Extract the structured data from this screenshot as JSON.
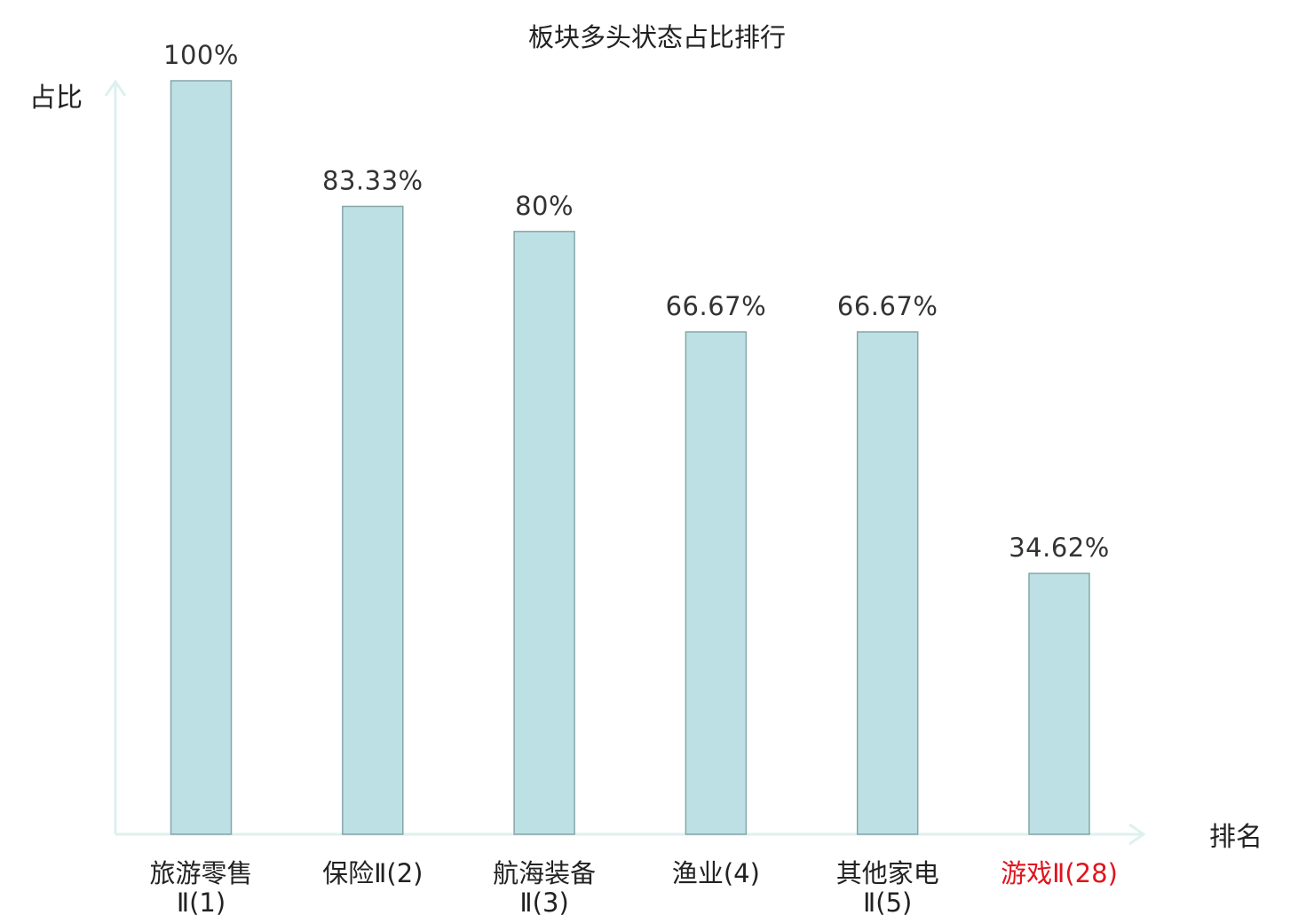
{
  "chart_data": {
    "type": "bar",
    "title": "板块多头状态占比排行",
    "ylabel": "占比",
    "xlabel": "排名",
    "ylim": [
      0,
      100
    ],
    "categories": [
      [
        "旅游零售",
        "Ⅱ(1)"
      ],
      [
        "保险Ⅱ(2)"
      ],
      [
        "航海装备",
        "Ⅱ(3)"
      ],
      [
        "渔业(4)"
      ],
      [
        "其他家电",
        "Ⅱ(5)"
      ],
      [
        "游戏Ⅱ(28)"
      ]
    ],
    "values": [
      100,
      83.33,
      80,
      66.67,
      66.67,
      34.62
    ],
    "value_labels": [
      "100%",
      "83.33%",
      "80%",
      "66.67%",
      "66.67%",
      "34.62%"
    ],
    "highlight_index": 5,
    "grid": false
  },
  "colors": {
    "bar_fill": "#bce0e3",
    "bar_stroke": "#86a6aa",
    "axis": "#ddf1ee",
    "text": "#222222",
    "value_text": "#333333",
    "highlight": "#e0141e"
  }
}
